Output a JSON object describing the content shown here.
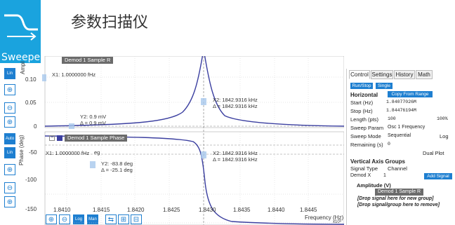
{
  "app": {
    "logo_text": "Sweeper",
    "title": "参数扫描仪"
  },
  "toolbar_left": {
    "lin1": "Lin",
    "auto": "Auto",
    "lin2": "Lin"
  },
  "toolbar_bottom": {
    "log": "Log",
    "man": "Man"
  },
  "plot1": {
    "legend": "Demod 1 Sample R",
    "ylabel": "Ampl",
    "cursor1": "X1: 1.0000000 fHz",
    "cursor2": "X2: 1842.9316 kHz",
    "cursor2_delta": "Δ = 1842.9316 kHz",
    "cursor_y": "Y2: 0.9 mV",
    "cursor_y_delta": "Δ = 0.9 mV",
    "yticks": [
      "0.10",
      "0.05",
      "0"
    ]
  },
  "plot2": {
    "legend": "Demod 1 Sample Phase",
    "ylabel": "Phase (deg)",
    "cursor1": "X1: 1.0000000 fHz",
    "cursor1_suffix": "eg",
    "cursor2": "X2: 1842.9316 kHz",
    "cursor2_delta": "Δ = 1842.9316 kHz",
    "cursor_y": "Y2: -83.8 deg",
    "cursor_y_delta": "Δ = -25.1 deg",
    "yticks": [
      "-50",
      "-100",
      "-150"
    ]
  },
  "xaxis": {
    "ticks": [
      "1.8410",
      "1.8415",
      "1.8420",
      "1.8425",
      "1.8430",
      "1.8435",
      "1.8440",
      "1.8445"
    ],
    "label": "Frequency (Hz)",
    "exp": "x10⁶"
  },
  "panel": {
    "tabs": [
      "Control",
      "Settings",
      "History",
      "Math"
    ],
    "run_stop": "Run/Stop",
    "single": "Single",
    "horizontal": "Horizontal",
    "copy_range": "Copy From Range",
    "start_label": "Start (Hz)",
    "start_value": "1.84077026M",
    "stop_label": "Stop (Hz)",
    "stop_value": "1.84476194M",
    "length_label": "Length (pts)",
    "length_value": "100",
    "percent": "100%",
    "param_label": "Sweep Param",
    "param_value": "Osc 1 Frequency",
    "mode_label": "Sweep Mode",
    "mode_value": "Sequential",
    "log_label": "Log",
    "remaining_label": "Remaining (s)",
    "remaining_value": "0",
    "dual_plot": "Dual Plot",
    "vag": "Vertical Axis Groups",
    "signal_type": "Signal Type",
    "channel": "Channel",
    "signal_value": "Demod X",
    "channel_value": "1",
    "add_signal": "Add Signal",
    "group_title": "Amplitude (V)",
    "group_item": "Demod 1 Sample R",
    "drop1": "[Drop signal here for new group]",
    "drop2": "[Drop signal/group here to remove]"
  },
  "colors": {
    "accent": "#1e7fd0",
    "curve": "#3b3fa0",
    "logo_bg": "#1aa3de"
  }
}
